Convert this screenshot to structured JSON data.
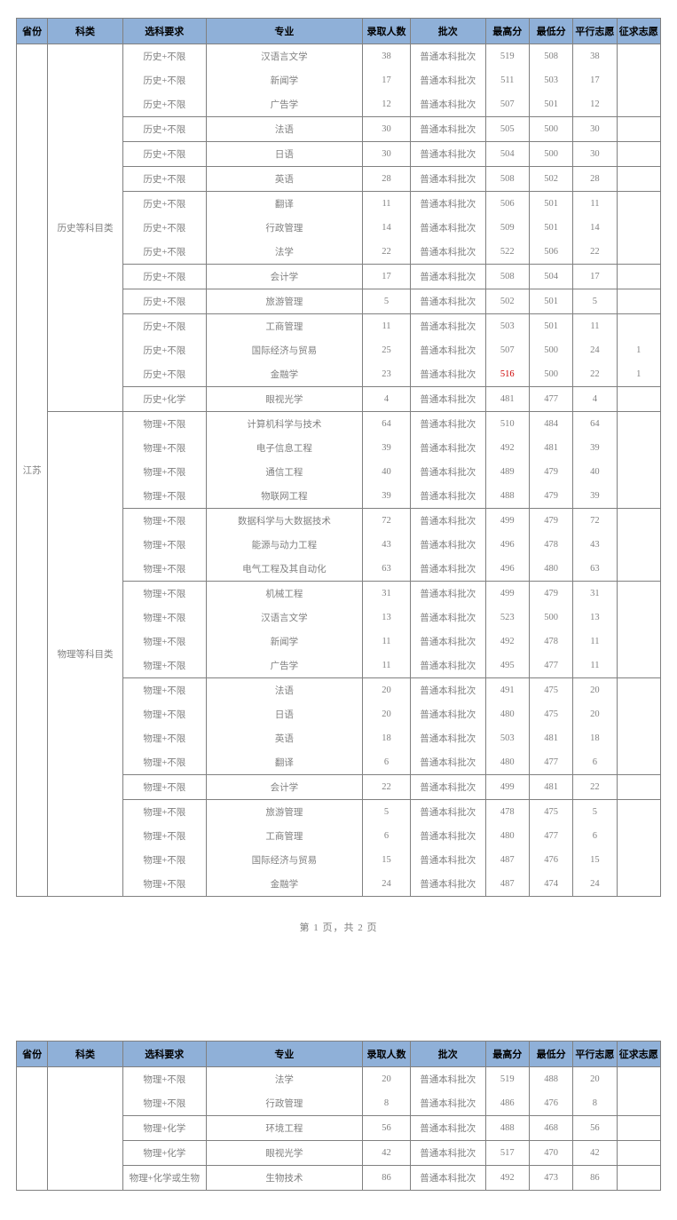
{
  "headers": {
    "province": "省份",
    "category": "科类",
    "requirement": "选科要求",
    "major": "专业",
    "enroll": "录取人数",
    "batch": "批次",
    "high": "最高分",
    "low": "最低分",
    "parallel": "平行志愿",
    "solicit": "征求志愿"
  },
  "pager1": "第 1 页，共 2 页",
  "province": "江苏",
  "batchDefault": "普通本科批次",
  "header_bg": "#8fb0d8",
  "border_color": "#808080",
  "text_color": "#808080",
  "red_color": "#c00",
  "page1": [
    {
      "category": "历史等科目类",
      "groups": [
        {
          "reqs": [
            "历史+不限",
            "历史+不限",
            "历史+不限"
          ],
          "rows": [
            {
              "major": "汉语言文学",
              "enroll": "38",
              "high": "519",
              "low": "508",
              "px": "38",
              "zj": ""
            },
            {
              "major": "新闻学",
              "enroll": "17",
              "high": "511",
              "low": "503",
              "px": "17",
              "zj": ""
            },
            {
              "major": "广告学",
              "enroll": "12",
              "high": "507",
              "low": "501",
              "px": "12",
              "zj": ""
            }
          ]
        },
        {
          "reqs": [
            "历史+不限"
          ],
          "rows": [
            {
              "major": "法语",
              "enroll": "30",
              "high": "505",
              "low": "500",
              "px": "30",
              "zj": ""
            }
          ]
        },
        {
          "reqs": [
            "历史+不限"
          ],
          "rows": [
            {
              "major": "日语",
              "enroll": "30",
              "high": "504",
              "low": "500",
              "px": "30",
              "zj": ""
            }
          ]
        },
        {
          "reqs": [
            "历史+不限"
          ],
          "rows": [
            {
              "major": "英语",
              "enroll": "28",
              "high": "508",
              "low": "502",
              "px": "28",
              "zj": ""
            }
          ]
        },
        {
          "reqs": [
            "历史+不限",
            "历史+不限",
            "历史+不限"
          ],
          "rows": [
            {
              "major": "翻译",
              "enroll": "11",
              "high": "506",
              "low": "501",
              "px": "11",
              "zj": ""
            },
            {
              "major": "行政管理",
              "enroll": "14",
              "high": "509",
              "low": "501",
              "px": "14",
              "zj": ""
            },
            {
              "major": "法学",
              "enroll": "22",
              "high": "522",
              "low": "506",
              "px": "22",
              "zj": ""
            }
          ]
        },
        {
          "reqs": [
            "历史+不限"
          ],
          "rows": [
            {
              "major": "会计学",
              "enroll": "17",
              "high": "508",
              "low": "504",
              "px": "17",
              "zj": ""
            }
          ]
        },
        {
          "reqs": [
            "历史+不限"
          ],
          "rows": [
            {
              "major": "旅游管理",
              "enroll": "5",
              "high": "502",
              "low": "501",
              "px": "5",
              "zj": ""
            }
          ]
        },
        {
          "reqs": [
            "历史+不限",
            "历史+不限",
            "历史+不限"
          ],
          "rows": [
            {
              "major": "工商管理",
              "enroll": "11",
              "high": "503",
              "low": "501",
              "px": "11",
              "zj": ""
            },
            {
              "major": "国际经济与贸易",
              "enroll": "25",
              "high": "507",
              "low": "500",
              "px": "24",
              "zj": "1"
            },
            {
              "major": "金融学",
              "enroll": "23",
              "high": "516",
              "high_red": true,
              "low": "500",
              "px": "22",
              "zj": "1"
            }
          ]
        },
        {
          "reqs": [
            "历史+化学"
          ],
          "rows": [
            {
              "major": "眼视光学",
              "enroll": "4",
              "high": "481",
              "low": "477",
              "px": "4",
              "zj": ""
            }
          ]
        }
      ]
    },
    {
      "category": "物理等科目类",
      "groups": [
        {
          "reqs": [
            "物理+不限",
            "物理+不限",
            "物理+不限",
            "物理+不限"
          ],
          "rows": [
            {
              "major": "计算机科学与技术",
              "enroll": "64",
              "high": "510",
              "low": "484",
              "px": "64",
              "zj": ""
            },
            {
              "major": "电子信息工程",
              "enroll": "39",
              "high": "492",
              "low": "481",
              "px": "39",
              "zj": ""
            },
            {
              "major": "通信工程",
              "enroll": "40",
              "high": "489",
              "low": "479",
              "px": "40",
              "zj": ""
            },
            {
              "major": "物联网工程",
              "enroll": "39",
              "high": "488",
              "low": "479",
              "px": "39",
              "zj": ""
            }
          ]
        },
        {
          "reqs": [
            "物理+不限",
            "物理+不限",
            "物理+不限"
          ],
          "rows": [
            {
              "major": "数据科学与大数据技术",
              "enroll": "72",
              "high": "499",
              "low": "479",
              "px": "72",
              "zj": ""
            },
            {
              "major": "能源与动力工程",
              "enroll": "43",
              "high": "496",
              "low": "478",
              "px": "43",
              "zj": ""
            },
            {
              "major": "电气工程及其自动化",
              "enroll": "63",
              "high": "496",
              "low": "480",
              "px": "63",
              "zj": ""
            }
          ]
        },
        {
          "reqs": [
            "物理+不限",
            "物理+不限",
            "物理+不限",
            "物理+不限"
          ],
          "rows": [
            {
              "major": "机械工程",
              "enroll": "31",
              "high": "499",
              "low": "479",
              "px": "31",
              "zj": ""
            },
            {
              "major": "汉语言文学",
              "enroll": "13",
              "high": "523",
              "low": "500",
              "px": "13",
              "zj": ""
            },
            {
              "major": "新闻学",
              "enroll": "11",
              "high": "492",
              "low": "478",
              "px": "11",
              "zj": ""
            },
            {
              "major": "广告学",
              "enroll": "11",
              "high": "495",
              "low": "477",
              "px": "11",
              "zj": ""
            }
          ]
        },
        {
          "reqs": [
            "物理+不限",
            "物理+不限",
            "物理+不限",
            "物理+不限"
          ],
          "rows": [
            {
              "major": "法语",
              "enroll": "20",
              "high": "491",
              "low": "475",
              "px": "20",
              "zj": ""
            },
            {
              "major": "日语",
              "enroll": "20",
              "high": "480",
              "low": "475",
              "px": "20",
              "zj": ""
            },
            {
              "major": "英语",
              "enroll": "18",
              "high": "503",
              "low": "481",
              "px": "18",
              "zj": ""
            },
            {
              "major": "翻译",
              "enroll": "6",
              "high": "480",
              "low": "477",
              "px": "6",
              "zj": ""
            }
          ]
        },
        {
          "reqs": [
            "物理+不限"
          ],
          "rows": [
            {
              "major": "会计学",
              "enroll": "22",
              "high": "499",
              "low": "481",
              "px": "22",
              "zj": ""
            }
          ]
        },
        {
          "reqs": [
            "物理+不限",
            "物理+不限",
            "物理+不限",
            "物理+不限"
          ],
          "rows": [
            {
              "major": "旅游管理",
              "enroll": "5",
              "high": "478",
              "low": "475",
              "px": "5",
              "zj": ""
            },
            {
              "major": "工商管理",
              "enroll": "6",
              "high": "480",
              "low": "477",
              "px": "6",
              "zj": ""
            },
            {
              "major": "国际经济与贸易",
              "enroll": "15",
              "high": "487",
              "low": "476",
              "px": "15",
              "zj": ""
            },
            {
              "major": "金融学",
              "enroll": "24",
              "high": "487",
              "low": "474",
              "px": "24",
              "zj": ""
            }
          ]
        }
      ]
    }
  ],
  "page2": [
    {
      "req": "物理+不限",
      "major": "法学",
      "enroll": "20",
      "high": "519",
      "low": "488",
      "px": "20",
      "zj": ""
    },
    {
      "req": "物理+不限",
      "major": "行政管理",
      "enroll": "8",
      "high": "486",
      "low": "476",
      "px": "8",
      "zj": ""
    },
    {
      "req": "物理+化学",
      "major": "环境工程",
      "enroll": "56",
      "high": "488",
      "low": "468",
      "px": "56",
      "zj": ""
    },
    {
      "req": "物理+化学",
      "major": "眼视光学",
      "enroll": "42",
      "high": "517",
      "low": "470",
      "px": "42",
      "zj": ""
    },
    {
      "req": "物理+化学或生物",
      "major": "生物技术",
      "enroll": "86",
      "high": "492",
      "low": "473",
      "px": "86",
      "zj": ""
    }
  ],
  "page2_groups": [
    2,
    1,
    1,
    1
  ]
}
